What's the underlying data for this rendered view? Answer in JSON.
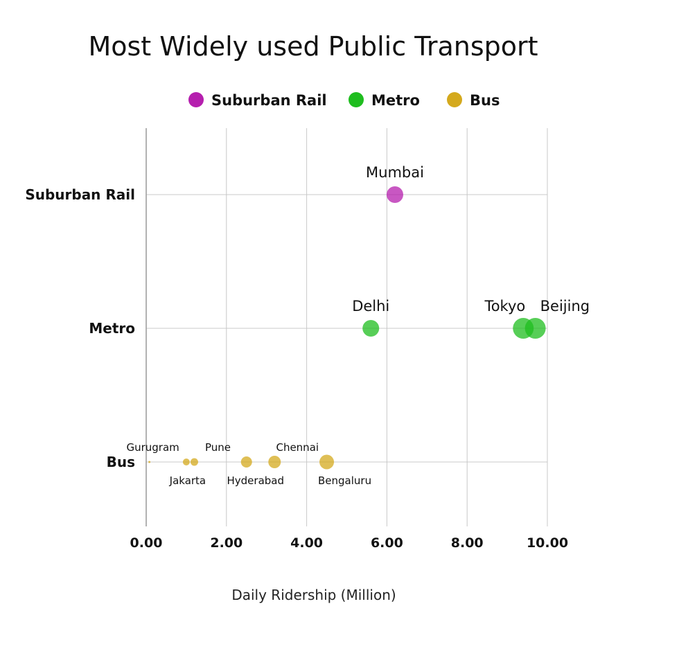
{
  "chart_data": {
    "type": "scatter",
    "title": "Most Widely used Public Transport",
    "xlabel": "Daily Ridership (Million)",
    "ylabel": "",
    "xlim": [
      0,
      10
    ],
    "xticks": [
      "0.00",
      "2.00",
      "4.00",
      "6.00",
      "8.00",
      "10.00"
    ],
    "xtick_values": [
      0,
      2,
      4,
      6,
      8,
      10
    ],
    "categories": [
      "Suburban Rail",
      "Metro",
      "Bus"
    ],
    "legend": [
      {
        "name": "Suburban Rail",
        "color": "#b51fae"
      },
      {
        "name": "Metro",
        "color": "#1fbd1f"
      },
      {
        "name": "Bus",
        "color": "#d4a91d"
      }
    ],
    "series": [
      {
        "name": "Suburban Rail",
        "color": "#b51fae",
        "points": [
          {
            "city": "Mumbai",
            "x": 6.2,
            "label_pos": "above"
          }
        ]
      },
      {
        "name": "Metro",
        "color": "#1fbd1f",
        "points": [
          {
            "city": "Delhi",
            "x": 5.6,
            "label_pos": "above"
          },
          {
            "city": "Tokyo",
            "x": 9.4,
            "label_pos": "above-left"
          },
          {
            "city": "Beijing",
            "x": 9.7,
            "label_pos": "above-right"
          }
        ]
      },
      {
        "name": "Bus",
        "color": "#d4a91d",
        "points": [
          {
            "city": "Gurugram",
            "x": 0.08,
            "label_pos": "above"
          },
          {
            "city": "Jakarta",
            "x": 1.0,
            "label_pos": "below"
          },
          {
            "city": "Pune",
            "x": 1.2,
            "label_pos": "above"
          },
          {
            "city": "Hyderabad",
            "x": 2.5,
            "label_pos": "below"
          },
          {
            "city": "Chennai",
            "x": 3.2,
            "label_pos": "above"
          },
          {
            "city": "Bengaluru",
            "x": 4.5,
            "label_pos": "below"
          }
        ]
      }
    ]
  }
}
